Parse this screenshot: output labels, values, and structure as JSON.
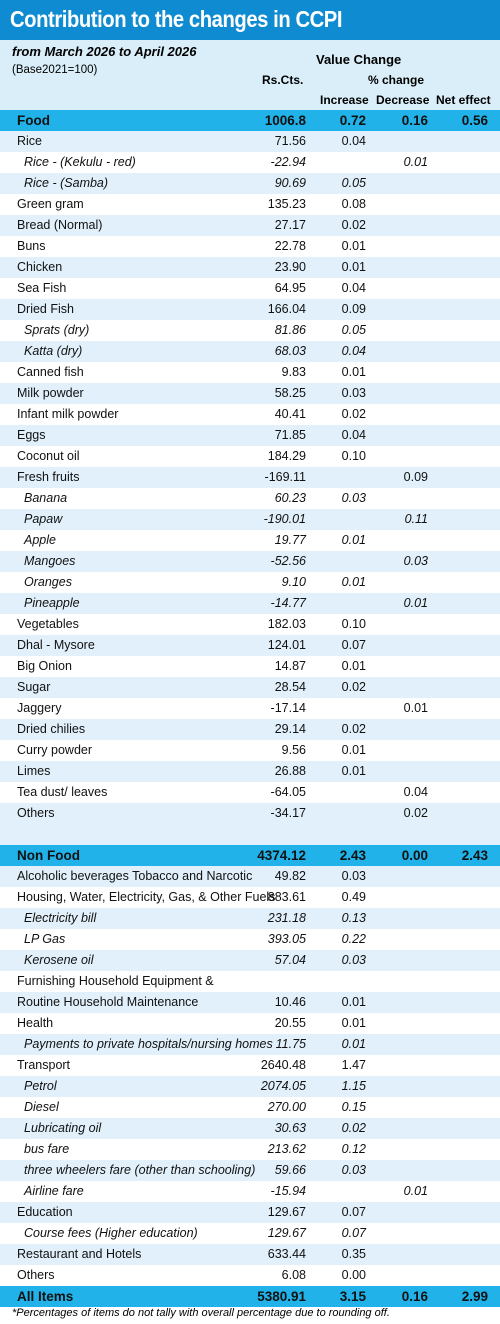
{
  "header": {
    "title": "Contribution to the changes in CCPI",
    "subtitle": "from March 2026 to April 2026",
    "base": "(Base2021=100)",
    "value_change": "Value Change",
    "rs_cts": "Rs.Cts.",
    "pct_change": "% change",
    "increase": "Increase",
    "decrease": "Decrease",
    "net_effect": "Net effect"
  },
  "groups": [
    [
      {
        "style": "section",
        "label": "Food",
        "rs": "1006.8",
        "inc": "0.72",
        "dec": "0.16",
        "net": "0.56"
      },
      {
        "style": "item",
        "label": "Rice",
        "rs": "71.56",
        "inc": "0.04"
      },
      {
        "style": "sub",
        "label": "Rice - (Kekulu - red)",
        "rs": "-22.94",
        "dec": "0.01"
      },
      {
        "style": "sub",
        "label": "Rice - (Samba)",
        "rs": "90.69",
        "inc": "0.05"
      },
      {
        "style": "item",
        "label": "Green gram",
        "rs": "135.23",
        "inc": "0.08"
      },
      {
        "style": "item",
        "label": "Bread (Normal)",
        "rs": "27.17",
        "inc": "0.02"
      },
      {
        "style": "item",
        "label": "Buns",
        "rs": "22.78",
        "inc": "0.01"
      },
      {
        "style": "item",
        "label": "Chicken",
        "rs": "23.90",
        "inc": "0.01"
      },
      {
        "style": "item",
        "label": "Sea Fish",
        "rs": "64.95",
        "inc": "0.04"
      },
      {
        "style": "item",
        "label": "Dried Fish",
        "rs": "166.04",
        "inc": "0.09"
      },
      {
        "style": "sub",
        "label": "Sprats (dry)",
        "rs": "81.86",
        "inc": "0.05"
      },
      {
        "style": "sub",
        "label": "Katta (dry)",
        "rs": "68.03",
        "inc": "0.04"
      },
      {
        "style": "item",
        "label": "Canned fish",
        "rs": "9.83",
        "inc": "0.01"
      },
      {
        "style": "item",
        "label": "Milk powder",
        "rs": "58.25",
        "inc": "0.03"
      },
      {
        "style": "item",
        "label": "Infant milk powder",
        "rs": "40.41",
        "inc": "0.02"
      },
      {
        "style": "item",
        "label": "Eggs",
        "rs": "71.85",
        "inc": "0.04"
      },
      {
        "style": "item",
        "label": "Coconut oil",
        "rs": "184.29",
        "inc": "0.10"
      },
      {
        "style": "item",
        "label": "Fresh fruits",
        "rs": "-169.11",
        "dec": "0.09"
      },
      {
        "style": "sub",
        "label": "Banana",
        "rs": "60.23",
        "inc": "0.03"
      },
      {
        "style": "sub",
        "label": "Papaw",
        "rs": "-190.01",
        "dec": "0.11"
      },
      {
        "style": "sub",
        "label": "Apple",
        "rs": "19.77",
        "inc": "0.01"
      },
      {
        "style": "sub",
        "label": "Mangoes",
        "rs": "-52.56",
        "dec": "0.03"
      },
      {
        "style": "sub",
        "label": "Oranges",
        "rs": "9.10",
        "inc": "0.01"
      },
      {
        "style": "sub",
        "label": "Pineapple",
        "rs": "-14.77",
        "dec": "0.01"
      },
      {
        "style": "item",
        "label": "Vegetables",
        "rs": "182.03",
        "inc": "0.10"
      },
      {
        "style": "item",
        "label": "Dhal - Mysore",
        "rs": "124.01",
        "inc": "0.07"
      },
      {
        "style": "item",
        "label": "Big Onion",
        "rs": "14.87",
        "inc": "0.01"
      },
      {
        "style": "item",
        "label": "Sugar",
        "rs": "28.54",
        "inc": "0.02"
      },
      {
        "style": "item",
        "label": "Jaggery",
        "rs": "-17.14",
        "dec": "0.01"
      },
      {
        "style": "item",
        "label": "Dried chilies",
        "rs": "29.14",
        "inc": "0.02"
      },
      {
        "style": "item",
        "label": "Curry powder",
        "rs": "9.56",
        "inc": "0.01"
      },
      {
        "style": "item",
        "label": "Limes",
        "rs": "26.88",
        "inc": "0.01"
      },
      {
        "style": "item",
        "label": "Tea dust/ leaves",
        "rs": "-64.05",
        "dec": "0.04"
      },
      {
        "style": "item",
        "label": "Others",
        "rs": "-34.17",
        "dec": "0.02"
      }
    ],
    [
      {
        "style": "section",
        "label": "Non Food",
        "rs": "4374.12",
        "inc": "2.43",
        "dec": "0.00",
        "net": "2.43"
      },
      {
        "style": "item",
        "label": "Alcoholic beverages Tobacco and Narcotic",
        "rs": "49.82",
        "inc": "0.03"
      },
      {
        "style": "item",
        "label": "Housing, Water, Electricity, Gas, & Other Fuels",
        "rs": "883.61",
        "inc": "0.49"
      },
      {
        "style": "sub",
        "label": "Electricity bill",
        "rs": "231.18",
        "inc": "0.13"
      },
      {
        "style": "sub",
        "label": "LP Gas",
        "rs": "393.05",
        "inc": "0.22"
      },
      {
        "style": "sub",
        "label": "Kerosene oil",
        "rs": "57.04",
        "inc": "0.03"
      },
      {
        "style": "item",
        "label": "Furnishing Household Equipment &"
      },
      {
        "style": "item",
        "label": "Routine Household Maintenance",
        "rs": "10.46",
        "inc": "0.01"
      },
      {
        "style": "item",
        "label": "Health",
        "rs": "20.55",
        "inc": "0.01"
      },
      {
        "style": "sub",
        "label": "Payments to private hospitals/nursing homes",
        "rs": "11.75",
        "inc": "0.01"
      },
      {
        "style": "item",
        "label": "Transport",
        "rs": "2640.48",
        "inc": "1.47"
      },
      {
        "style": "sub",
        "label": "Petrol",
        "rs": "2074.05",
        "inc": "1.15"
      },
      {
        "style": "sub",
        "label": "Diesel",
        "rs": "270.00",
        "inc": "0.15"
      },
      {
        "style": "sub",
        "label": "Lubricating oil",
        "rs": "30.63",
        "inc": "0.02"
      },
      {
        "style": "sub",
        "label": "bus fare",
        "rs": "213.62",
        "inc": "0.12"
      },
      {
        "style": "sub",
        "label": "three wheelers fare (other than schooling)",
        "rs": "59.66",
        "inc": "0.03"
      },
      {
        "style": "sub",
        "label": "Airline fare",
        "rs": "-15.94",
        "dec": "0.01"
      },
      {
        "style": "item",
        "label": "Education",
        "rs": "129.67",
        "inc": "0.07"
      },
      {
        "style": "sub",
        "label": "Course fees (Higher education)",
        "rs": "129.67",
        "inc": "0.07"
      },
      {
        "style": "item",
        "label": "Restaurant and Hotels",
        "rs": "633.44",
        "inc": "0.35"
      },
      {
        "style": "item",
        "label": "Others",
        "rs": "6.08",
        "inc": "0.00"
      }
    ]
  ],
  "total": {
    "style": "section",
    "label": "All Items",
    "rs": "5380.91",
    "inc": "3.15",
    "dec": "0.16",
    "net": "2.99"
  },
  "footnote": "*Percentages of items do not tally with overall percentage due to rounding off."
}
